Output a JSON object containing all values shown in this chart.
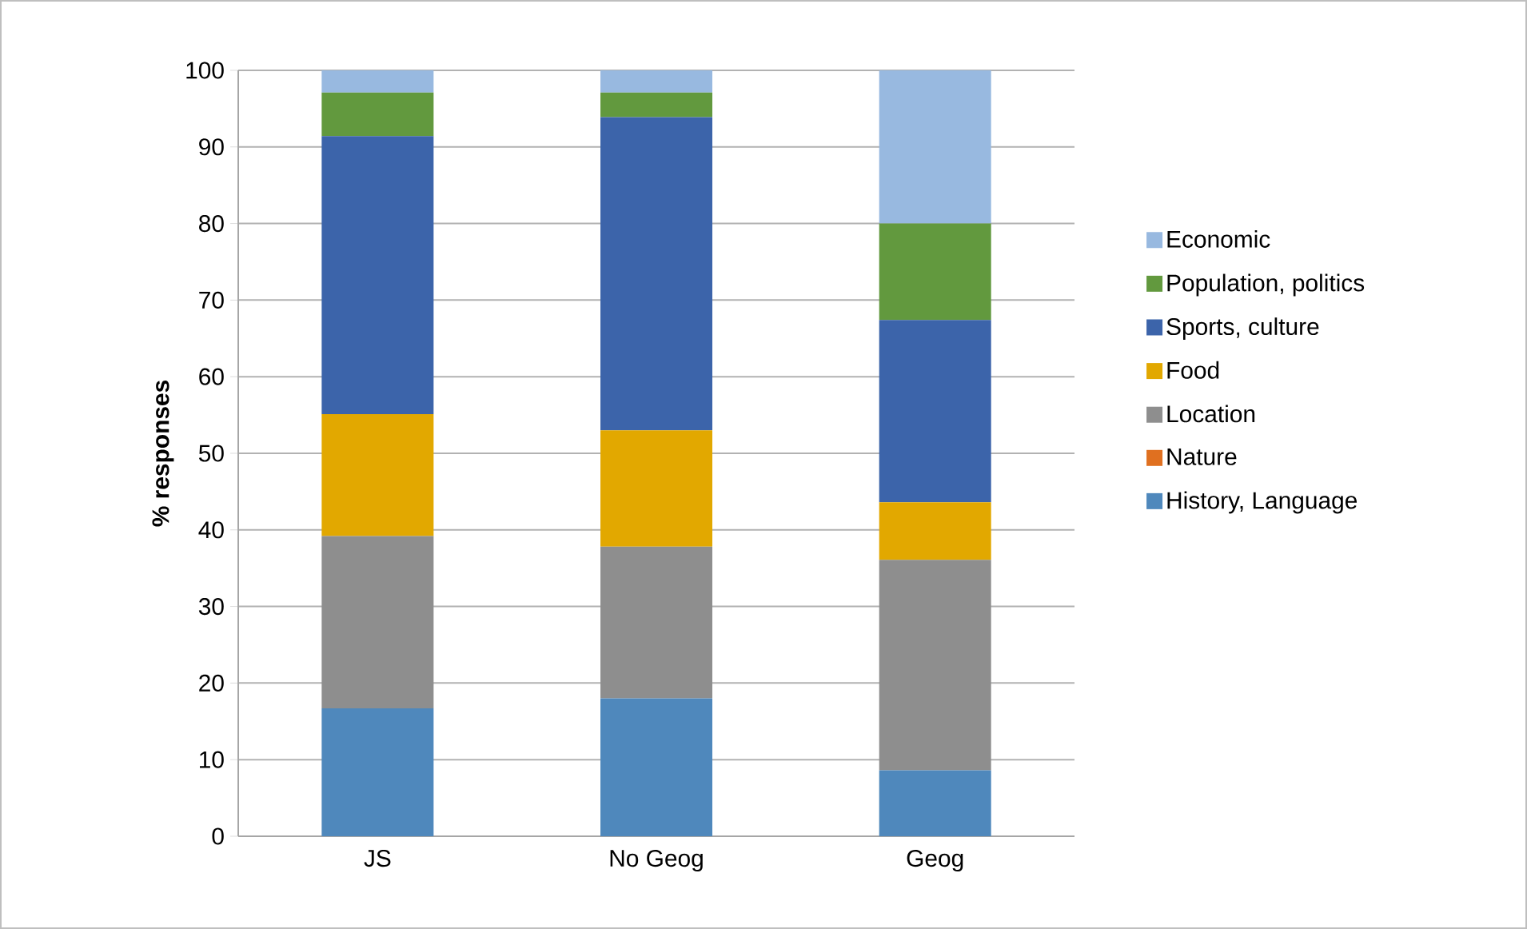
{
  "chart_data": {
    "type": "bar",
    "stacked": true,
    "ylabel": "% responses",
    "categories": [
      "JS",
      "No Geog",
      "Geog"
    ],
    "series": [
      {
        "name": "History, Language",
        "color": "#4f88bc",
        "values": [
          16.7,
          18.0,
          8.6
        ]
      },
      {
        "name": "Nature",
        "color": "#e07020",
        "values": [
          0,
          0,
          0
        ]
      },
      {
        "name": "Location",
        "color": "#8e8e8e",
        "values": [
          22.5,
          19.8,
          27.5
        ]
      },
      {
        "name": "Food",
        "color": "#e2a800",
        "values": [
          15.9,
          15.2,
          7.5
        ]
      },
      {
        "name": "Sports, culture",
        "color": "#3c64aa",
        "values": [
          36.3,
          40.9,
          23.8
        ]
      },
      {
        "name": "Population, politics",
        "color": "#62993e",
        "values": [
          5.7,
          3.2,
          12.6
        ]
      },
      {
        "name": "Economic",
        "color": "#98b9e0",
        "values": [
          2.9,
          2.9,
          20.0
        ]
      }
    ],
    "ylim": [
      0,
      100
    ],
    "yticks": [
      0,
      10,
      20,
      30,
      40,
      50,
      60,
      70,
      80,
      90,
      100
    ],
    "grid": "y",
    "legend": "right"
  }
}
